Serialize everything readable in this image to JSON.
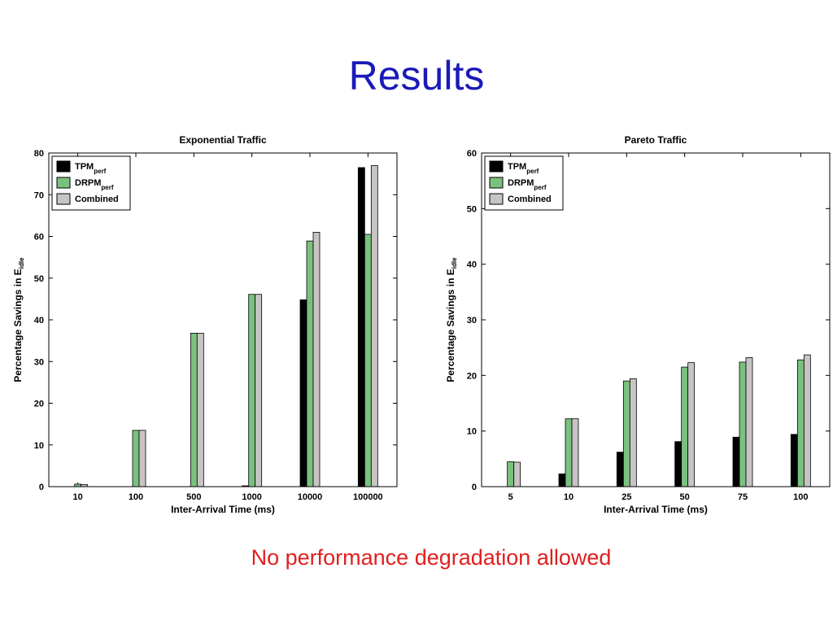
{
  "slide": {
    "title": "Results",
    "footnote": "No performance degradation allowed"
  },
  "colors": {
    "tpm": "#000000",
    "drpm": "#7ac17e",
    "combined": "#c8c4c4",
    "title": "#1a1ab8",
    "footnote": "#e02020"
  },
  "chart_data": [
    {
      "type": "bar",
      "title": "Exponential Traffic",
      "xlabel": "Inter-Arrival Time (ms)",
      "ylabel": "Percentage Savings in E",
      "ylabel_sub": "idle",
      "ylim": [
        0,
        80
      ],
      "yticks": [
        0,
        10,
        20,
        30,
        40,
        50,
        60,
        70,
        80
      ],
      "categories": [
        "10",
        "100",
        "500",
        "1000",
        "10000",
        "100000"
      ],
      "legend_position": "top-left",
      "grid": false,
      "series": [
        {
          "name": "TPM",
          "name_sub": "perf",
          "color": "#000000",
          "values": [
            0,
            0,
            0,
            0.2,
            44.8,
            76.5
          ]
        },
        {
          "name": "DRPM",
          "name_sub": "perf",
          "color": "#7ac17e",
          "values": [
            0.6,
            13.5,
            36.8,
            46.1,
            58.9,
            60.5
          ]
        },
        {
          "name": "Combined",
          "name_sub": "",
          "color": "#c8c4c4",
          "values": [
            0.5,
            13.5,
            36.8,
            46.1,
            61.0,
            77.0
          ]
        }
      ]
    },
    {
      "type": "bar",
      "title": "Pareto Traffic",
      "xlabel": "Inter-Arrival Time (ms)",
      "ylabel": "Percentage Savings in E",
      "ylabel_sub": "idle",
      "ylim": [
        0,
        60
      ],
      "yticks": [
        0,
        10,
        20,
        30,
        40,
        50,
        60
      ],
      "categories": [
        "5",
        "10",
        "25",
        "50",
        "75",
        "100"
      ],
      "legend_position": "top-left",
      "grid": false,
      "series": [
        {
          "name": "TPM",
          "name_sub": "perf",
          "color": "#000000",
          "values": [
            0,
            2.3,
            6.2,
            8.1,
            8.9,
            9.4
          ]
        },
        {
          "name": "DRPM",
          "name_sub": "perf",
          "color": "#7ac17e",
          "values": [
            4.5,
            12.2,
            19.0,
            21.5,
            22.4,
            22.8
          ]
        },
        {
          "name": "Combined",
          "name_sub": "",
          "color": "#c8c4c4",
          "values": [
            4.4,
            12.2,
            19.4,
            22.3,
            23.2,
            23.7
          ]
        }
      ]
    }
  ]
}
